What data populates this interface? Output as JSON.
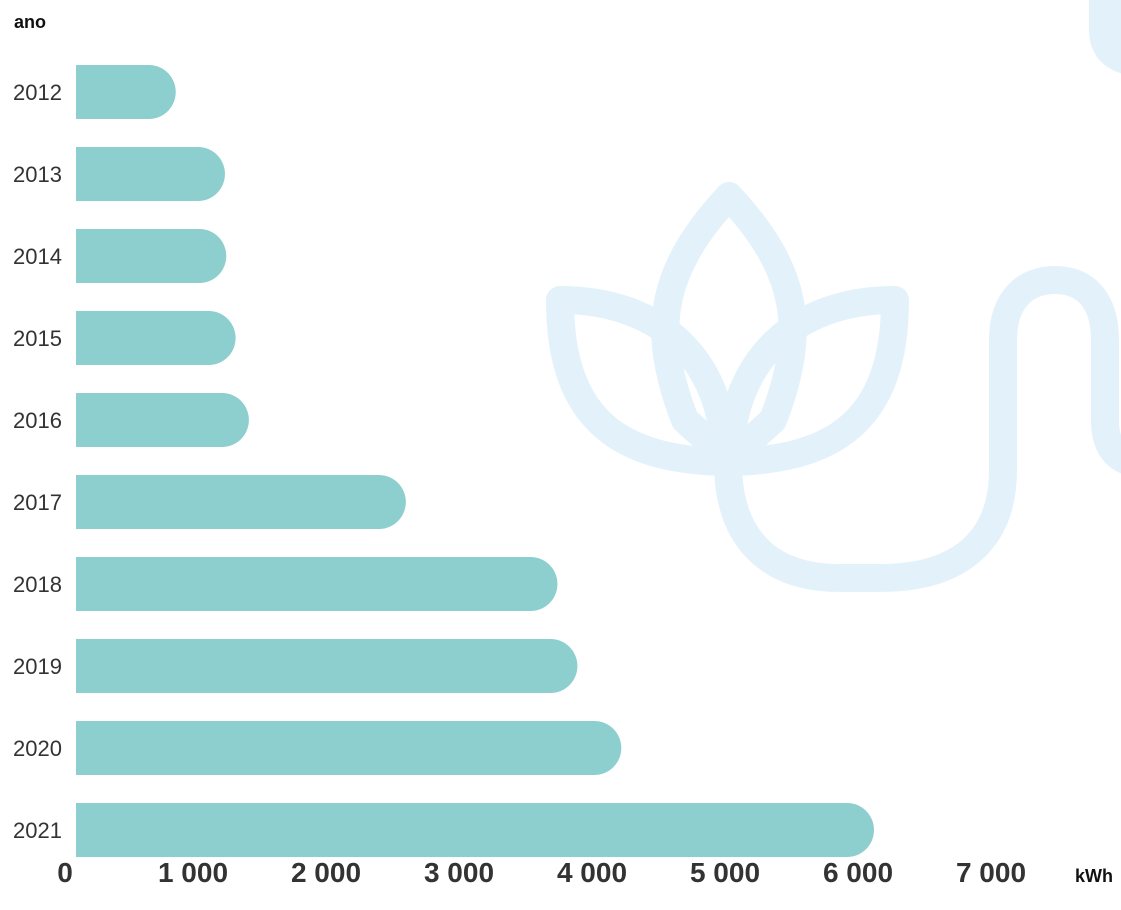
{
  "chart_data": {
    "type": "bar",
    "orientation": "horizontal",
    "ylabel": "ano",
    "xlabel": "kWh",
    "categories": [
      "2012",
      "2013",
      "2014",
      "2015",
      "2016",
      "2017",
      "2018",
      "2019",
      "2020",
      "2021"
    ],
    "values": [
      750,
      1120,
      1130,
      1200,
      1300,
      2480,
      3620,
      3770,
      4100,
      6000
    ],
    "xlim": [
      0,
      7000
    ],
    "xticks": [
      "0",
      "1 000",
      "2 000",
      "3 000",
      "4 000",
      "5 000",
      "6 000",
      "7 000"
    ],
    "bar_color": "#8dcfcf",
    "watermark_color": "#e3f2fa",
    "grid": false
  }
}
